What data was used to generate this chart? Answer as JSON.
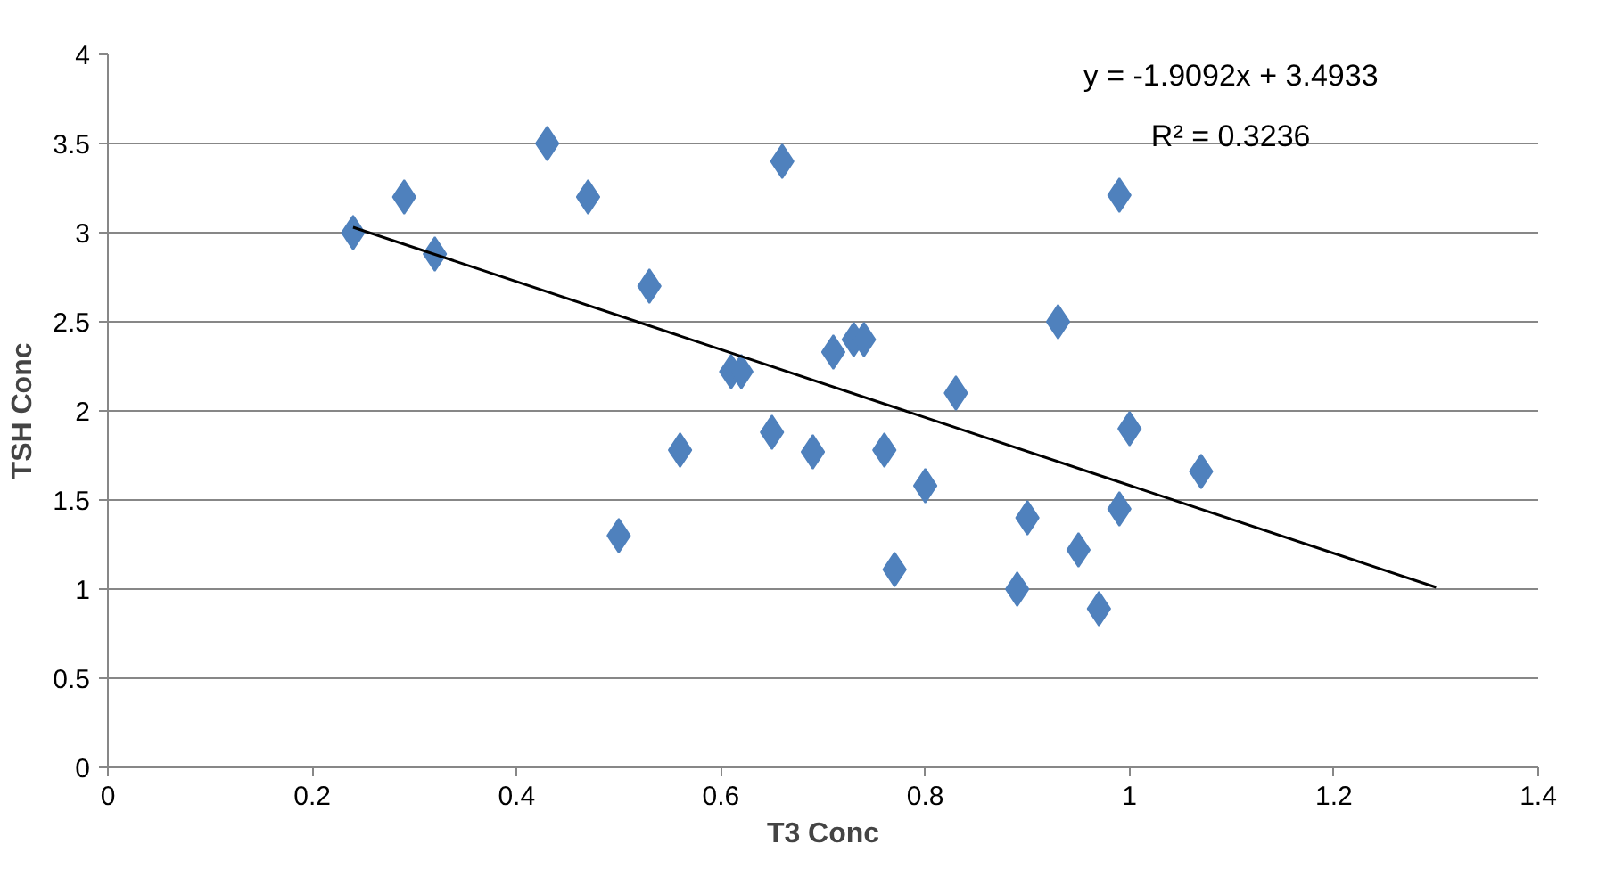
{
  "chart_data": {
    "type": "scatter",
    "xlabel": "T3 Conc",
    "ylabel": "TSH Conc",
    "xlim": [
      0,
      1.4
    ],
    "xticks": [
      0,
      0.2,
      0.4,
      0.6,
      0.8,
      1,
      1.2,
      1.4
    ],
    "ylim": [
      0,
      4
    ],
    "yticks": [
      0,
      0.5,
      1,
      1.5,
      2,
      2.5,
      3,
      3.5,
      4
    ],
    "grid": "y",
    "marker": "diamond",
    "annotations": [
      "y = -1.9092x + 3.4933",
      "R² = 0.3236"
    ],
    "series": [
      {
        "color": "#4f81bd",
        "x": [
          0.24,
          0.29,
          0.32,
          0.43,
          0.47,
          0.5,
          0.53,
          0.56,
          0.61,
          0.62,
          0.65,
          0.66,
          0.69,
          0.71,
          0.73,
          0.74,
          0.76,
          0.77,
          0.8,
          0.83,
          0.89,
          0.9,
          0.93,
          0.95,
          0.97,
          0.99,
          0.99,
          1.0,
          1.07
        ],
        "values": [
          3.0,
          3.2,
          2.88,
          3.5,
          3.2,
          1.3,
          2.7,
          1.78,
          2.22,
          2.22,
          1.88,
          3.4,
          1.77,
          2.33,
          2.4,
          2.4,
          1.78,
          1.11,
          1.58,
          2.1,
          1.0,
          1.4,
          2.5,
          1.22,
          0.89,
          1.45,
          3.21,
          1.9,
          1.66
        ]
      },
      {
        "type": "line",
        "color": "#000000",
        "marker": "none",
        "x": [
          0.24,
          1.3
        ],
        "values": [
          3.03,
          1.01
        ]
      }
    ]
  }
}
